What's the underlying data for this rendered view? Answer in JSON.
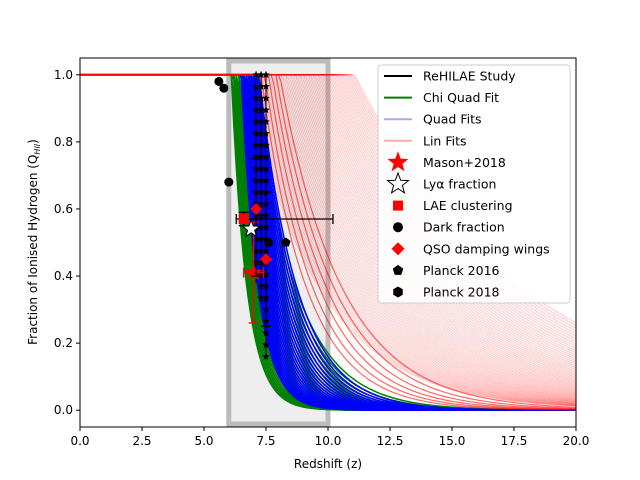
{
  "chart_data": {
    "type": "line",
    "xlabel": "Redshift (z)",
    "ylabel_main": "Fraction of Ionised Hydrogen (Q",
    "ylabel_sub": "HII",
    "ylabel_end": ")",
    "xlim": [
      0,
      20
    ],
    "ylim": [
      -0.05,
      1.05
    ],
    "x_ticks": [
      0,
      2.5,
      5,
      7.5,
      10,
      12.5,
      15,
      17.5,
      20
    ],
    "x_tick_labels": [
      "0.0",
      "2.5",
      "5.0",
      "7.5",
      "10.0",
      "12.5",
      "15.0",
      "17.5",
      "20.0"
    ],
    "y_ticks": [
      0,
      0.2,
      0.4,
      0.6,
      0.8,
      1.0
    ],
    "y_tick_labels": [
      "0.0",
      "0.2",
      "0.4",
      "0.6",
      "0.8",
      "1.0"
    ],
    "grid": false,
    "legend_position": "top-right",
    "legend": [
      {
        "label": "ReHILAE Study",
        "marker": "line",
        "color": "#000000"
      },
      {
        "label": "Chi Quad Fit",
        "marker": "line",
        "color": "#008000"
      },
      {
        "label": "Quad Fits",
        "marker": "line",
        "color": "#aaaaee"
      },
      {
        "label": "Lin Fits",
        "marker": "line",
        "color": "#ffaaaa"
      },
      {
        "label": "Mason+2018",
        "marker": "star",
        "color": "#ff0000"
      },
      {
        "label": "Lyα fraction",
        "marker": "star-open",
        "color": "#000000"
      },
      {
        "label": "LAE clustering",
        "marker": "square",
        "color": "#ff0000"
      },
      {
        "label": "Dark fraction",
        "marker": "circle",
        "color": "#000000"
      },
      {
        "label": "QSO damping wings",
        "marker": "diamond",
        "color": "#ff0000"
      },
      {
        "label": "Planck 2016",
        "marker": "pentagon",
        "color": "#000000"
      },
      {
        "label": "Planck 2018",
        "marker": "hexagon",
        "color": "#000000"
      }
    ],
    "shaded_region": {
      "x_range": [
        6.0,
        10.0
      ],
      "color": "#bbbbbb"
    },
    "red_line": {
      "x": [
        0,
        7.2
      ],
      "y": [
        1.0,
        1.0
      ]
    },
    "dark_fraction_points": [
      {
        "x": 5.6,
        "y": 0.98
      },
      {
        "x": 5.8,
        "y": 0.96
      },
      {
        "x": 6.0,
        "y": 0.68
      },
      {
        "x": 7.6,
        "y": 0.5
      }
    ],
    "lya_fraction_point": {
      "x": 6.9,
      "y": 0.54
    },
    "lae_clustering_point": {
      "x": 6.6,
      "y": 0.57,
      "xerr": [
        0.3,
        3.6
      ],
      "yerr": [
        0.02,
        0.02
      ]
    },
    "mason_point": {
      "x": 7.0,
      "y": 0.41,
      "xerr": [
        0.4,
        0.4
      ],
      "yerr": [
        0.15,
        0.15
      ]
    },
    "qso_points": [
      {
        "x": 7.1,
        "y": 0.6,
        "yerr": [
          0.2,
          0.15
        ]
      },
      {
        "x": 7.5,
        "y": 0.45,
        "yerr": [
          0.2,
          0.2
        ]
      }
    ],
    "planck2016_point": {
      "x": 8.3,
      "y": 0.5
    },
    "rehilae_star_columns": [
      {
        "x": 7.1,
        "y_top": 1.0,
        "y_bottom": 0.38
      },
      {
        "x": 7.3,
        "y_top": 1.0,
        "y_bottom": 0.32
      },
      {
        "x": 7.5,
        "y_top": 1.0,
        "y_bottom": 0.16
      }
    ]
  }
}
